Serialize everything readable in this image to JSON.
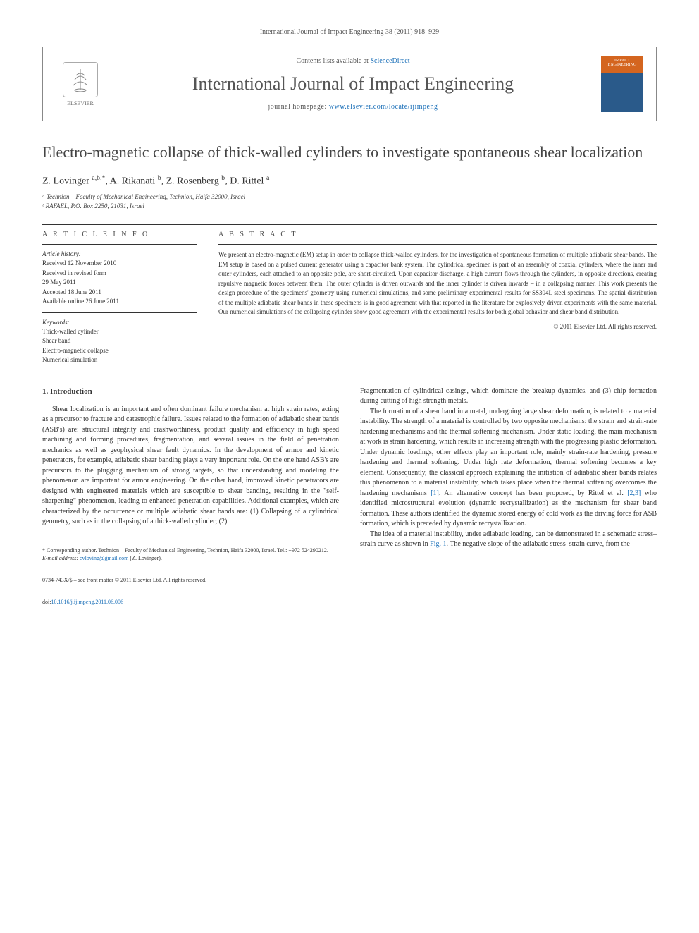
{
  "journal_ref": "International Journal of Impact Engineering 38 (2011) 918–929",
  "header": {
    "elsevier_label": "ELSEVIER",
    "contents_prefix": "Contents lists available at ",
    "contents_link": "ScienceDirect",
    "journal_title": "International Journal of Impact Engineering",
    "homepage_prefix": "journal homepage: ",
    "homepage_url": "www.elsevier.com/locate/ijimpeng",
    "cover_text": "IMPACT ENGINEERING"
  },
  "article": {
    "title": "Electro-magnetic collapse of thick-walled cylinders to investigate spontaneous shear localization",
    "authors_html": "Z. Lovinger <sup>a,b,*</sup>, A. Rikanati <sup>b</sup>, Z. Rosenberg <sup>b</sup>, D. Rittel <sup>a</sup>",
    "affiliations": [
      "ᵃ Technion – Faculty of Mechanical Engineering, Technion, Haifa 32000, Israel",
      "ᵇ RAFAEL, P.O. Box 2250, 21031, Israel"
    ]
  },
  "info": {
    "heading": "A R T I C L E   I N F O",
    "history_label": "Article history:",
    "history": [
      "Received 12 November 2010",
      "Received in revised form",
      "29 May 2011",
      "Accepted 18 June 2011",
      "Available online 26 June 2011"
    ],
    "keywords_label": "Keywords:",
    "keywords": [
      "Thick-walled cylinder",
      "Shear band",
      "Electro-magnetic collapse",
      "Numerical simulation"
    ]
  },
  "abstract": {
    "heading": "A B S T R A C T",
    "text": "We present an electro-magnetic (EM) setup in order to collapse thick-walled cylinders, for the investigation of spontaneous formation of multiple adiabatic shear bands. The EM setup is based on a pulsed current generator using a capacitor bank system. The cylindrical specimen is part of an assembly of coaxial cylinders, where the inner and outer cylinders, each attached to an opposite pole, are short-circuited. Upon capacitor discharge, a high current flows through the cylinders, in opposite directions, creating repulsive magnetic forces between them. The outer cylinder is driven outwards and the inner cylinder is driven inwards – in a collapsing manner. This work presents the design procedure of the specimens' geometry using numerical simulations, and some preliminary experimental results for SS304L steel specimens. The spatial distribution of the multiple adiabatic shear bands in these specimens is in good agreement with that reported in the literature for explosively driven experiments with the same material. Our numerical simulations of the collapsing cylinder show good agreement with the experimental results for both global behavior and shear band distribution.",
    "copyright": "© 2011 Elsevier Ltd. All rights reserved."
  },
  "body": {
    "section_number": "1.",
    "section_title": "Introduction",
    "col1_p1": "Shear localization is an important and often dominant failure mechanism at high strain rates, acting as a precursor to fracture and catastrophic failure. Issues related to the formation of adiabatic shear bands (ASB's) are: structural integrity and crashworthiness, product quality and efficiency in high speed machining and forming procedures, fragmentation, and several issues in the field of penetration mechanics as well as geophysical shear fault dynamics. In the development of armor and kinetic penetrators, for example, adiabatic shear banding plays a very important role. On the one hand ASB's are precursors to the plugging mechanism of strong targets, so that understanding and modeling the phenomenon are important for armor engineering. On the other hand, improved kinetic penetrators are designed with engineered materials which are susceptible to shear banding, resulting in the \"self-sharpening\" phenomenon, leading to enhanced penetration capabilities. Additional examples, which are characterized by the occurrence or multiple adiabatic shear bands are: (1) Collapsing of a cylindrical geometry, such as in the collapsing of a thick-walled cylinder; (2)",
    "col2_p1": "Fragmentation of cylindrical casings, which dominate the breakup dynamics, and (3) chip formation during cutting of high strength metals.",
    "col2_p2_pre": "The formation of a shear band in a metal, undergoing large shear deformation, is related to a material instability. The strength of a material is controlled by two opposite mechanisms: the strain and strain-rate hardening mechanisms and the thermal softening mechanism. Under static loading, the main mechanism at work is strain hardening, which results in increasing strength with the progressing plastic deformation. Under dynamic loadings, other effects play an important role, mainly strain-rate hardening, pressure hardening and thermal softening. Under high rate deformation, thermal softening becomes a key element. Consequently, the classical approach explaining the initiation of adiabatic shear bands relates this phenomenon to a material instability, which takes place when the thermal softening overcomes the hardening mechanisms ",
    "col2_p2_ref1": "[1]",
    "col2_p2_mid": ". An alternative concept has been proposed, by Rittel et al. ",
    "col2_p2_ref2": "[2,3]",
    "col2_p2_post": " who identified microstructural evolution (dynamic recrystallization) as the mechanism for shear band formation. These authors identified the dynamic stored energy of cold work as the driving force for ASB formation, which is preceded by dynamic recrystallization.",
    "col2_p3_pre": "The idea of a material instability, under adiabatic loading, can be demonstrated in a schematic stress–strain curve as shown in ",
    "col2_p3_fig": "Fig. 1",
    "col2_p3_post": ". The negative slope of the adiabatic stress–strain curve, from the"
  },
  "footnote": {
    "corresponding": "* Corresponding author. Technion – Faculty of Mechanical Engineering, Technion, Haifa 32000, Israel. Tel.: +972 524290212.",
    "email_label": "E-mail address: ",
    "email": "cvloving@gmail.com",
    "email_attribution": " (Z. Lovinger)."
  },
  "footer": {
    "issn": "0734-743X/$ – see front matter © 2011 Elsevier Ltd. All rights reserved.",
    "doi_label": "doi:",
    "doi": "10.1016/j.ijimpeng.2011.06.006"
  },
  "colors": {
    "link": "#1a6fb8",
    "text": "#333333",
    "heading": "#444444",
    "border": "#888888"
  }
}
